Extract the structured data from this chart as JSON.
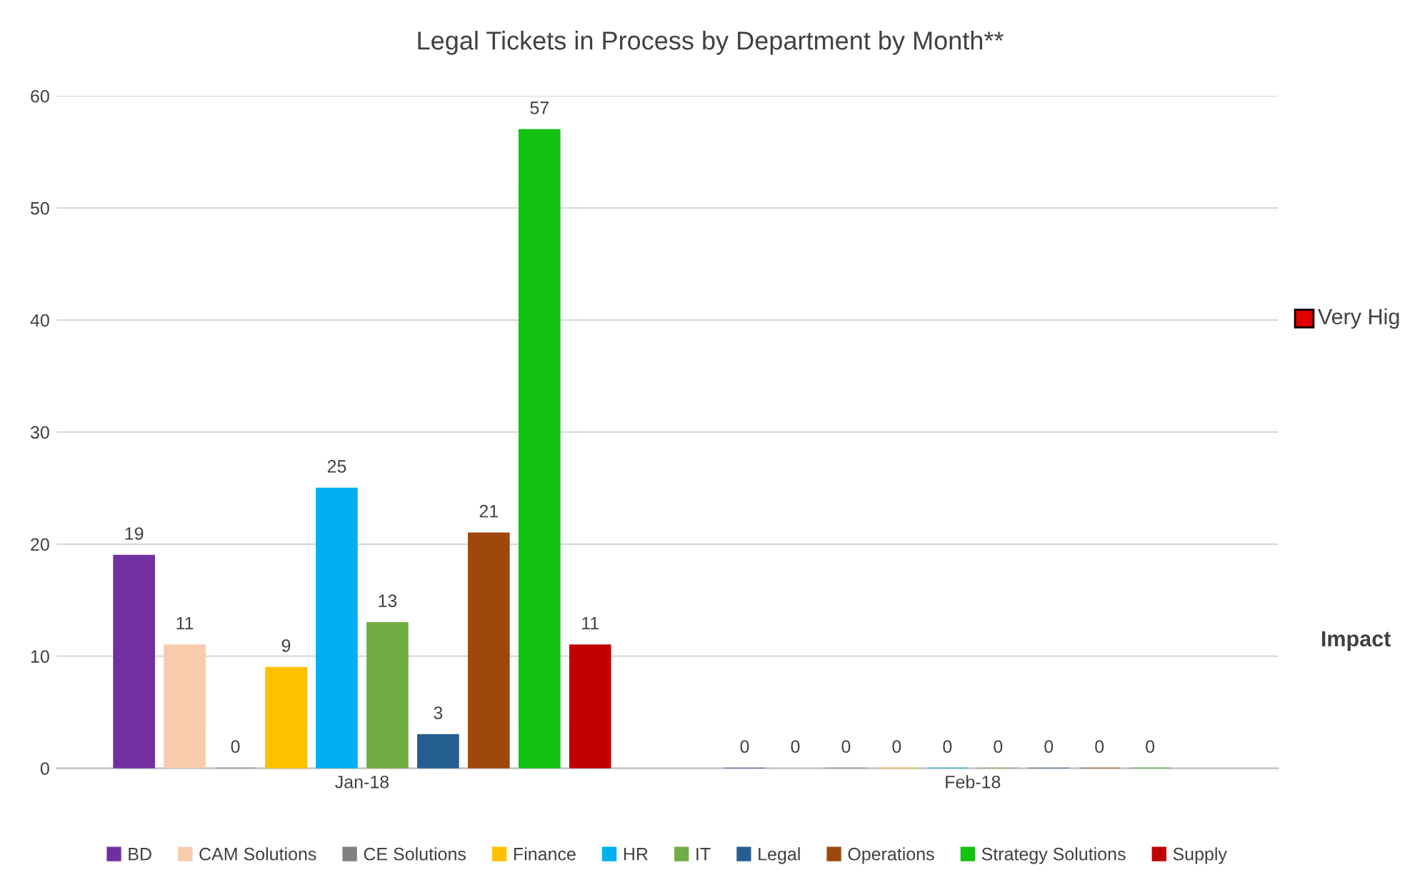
{
  "chart_data": {
    "type": "bar",
    "title": "Legal Tickets in Process by Department by Month**",
    "categories": [
      "Jan-18",
      "Feb-18"
    ],
    "series": [
      {
        "name": "BD",
        "color": "#7030a0",
        "values": [
          19,
          0
        ]
      },
      {
        "name": "CAM Solutions",
        "color": "#f8cbad",
        "values": [
          11,
          0
        ]
      },
      {
        "name": "CE Solutions",
        "color": "#808080",
        "values": [
          0,
          0
        ]
      },
      {
        "name": "Finance",
        "color": "#ffc000",
        "values": [
          9,
          0
        ]
      },
      {
        "name": "HR",
        "color": "#00b0f0",
        "values": [
          25,
          0
        ]
      },
      {
        "name": "IT",
        "color": "#70ad47",
        "values": [
          13,
          0
        ]
      },
      {
        "name": "Legal",
        "color": "#255e91",
        "values": [
          3,
          0
        ]
      },
      {
        "name": "Operations",
        "color": "#9e480e",
        "values": [
          21,
          0
        ]
      },
      {
        "name": "Strategy Solutions",
        "color": "#12c312",
        "values": [
          57,
          0
        ]
      },
      {
        "name": "Supply",
        "color": "#c00000",
        "values": [
          11,
          null
        ]
      }
    ],
    "ylim": [
      0,
      60
    ],
    "yticks": [
      0,
      10,
      20,
      30,
      40,
      50,
      60
    ],
    "grid": "y",
    "legend": "bottom",
    "data_labels": true,
    "annotations": [
      "Very Hig",
      "Impact"
    ]
  }
}
